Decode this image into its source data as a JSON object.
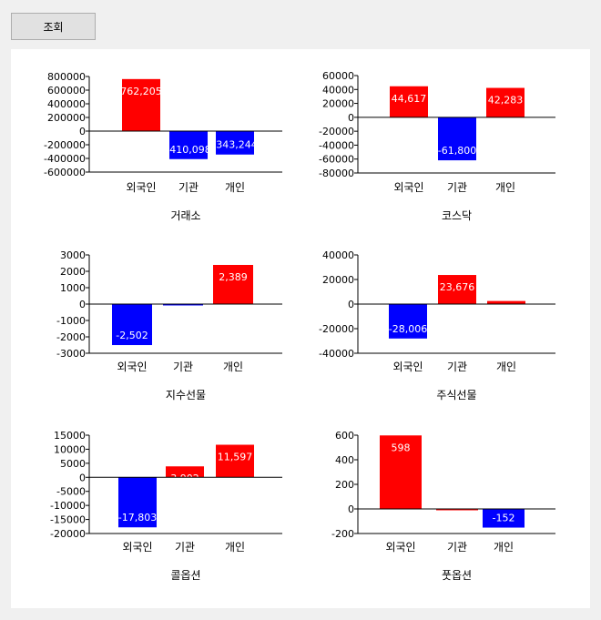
{
  "toolbar": {
    "query_label": "조회"
  },
  "chart_data": [
    {
      "type": "bar",
      "title": "거래소",
      "categories": [
        "외국인",
        "기관",
        "개인"
      ],
      "values": [
        762205,
        -410098,
        -343244
      ],
      "value_labels": [
        "762,205",
        "-410,098",
        "-343,244"
      ],
      "yticks": [
        800000,
        600000,
        400000,
        200000,
        0,
        -200000,
        -400000,
        -600000
      ],
      "ylim": [
        -600000,
        800000
      ],
      "colors": [
        "#ff0000",
        "#0000ff",
        "#0000ff"
      ]
    },
    {
      "type": "bar",
      "title": "코스닥",
      "categories": [
        "외국인",
        "기관",
        "개인"
      ],
      "values": [
        44617,
        -61800,
        42283
      ],
      "value_labels": [
        "44,617",
        "-61,800",
        "42,283"
      ],
      "yticks": [
        60000,
        40000,
        20000,
        0,
        -20000,
        -40000,
        -60000,
        -80000
      ],
      "ylim": [
        -80000,
        60000
      ],
      "colors": [
        "#ff0000",
        "#0000ff",
        "#ff0000"
      ]
    },
    {
      "type": "bar",
      "title": "지수선물",
      "categories": [
        "외국인",
        "기관",
        "개인"
      ],
      "values": [
        -2502,
        -60,
        2389
      ],
      "value_labels": [
        "-2,502",
        "",
        "2,389"
      ],
      "yticks": [
        3000,
        2000,
        1000,
        0,
        -1000,
        -2000,
        -3000
      ],
      "ylim": [
        -3000,
        3000
      ],
      "colors": [
        "#0000ff",
        "#0000ff",
        "#ff0000"
      ]
    },
    {
      "type": "bar",
      "title": "주식선물",
      "categories": [
        "외국인",
        "기관",
        "개인"
      ],
      "values": [
        -28006,
        23676,
        2500
      ],
      "value_labels": [
        "-28,006",
        "23,676",
        ""
      ],
      "yticks": [
        40000,
        20000,
        0,
        -20000,
        -40000
      ],
      "ylim": [
        -40000,
        40000
      ],
      "colors": [
        "#0000ff",
        "#ff0000",
        "#ff0000"
      ]
    },
    {
      "type": "bar",
      "title": "콜옵션",
      "categories": [
        "외국인",
        "기관",
        "개인"
      ],
      "values": [
        -17803,
        3902,
        11597
      ],
      "value_labels": [
        "-17,803",
        "3,902",
        "11,597"
      ],
      "yticks": [
        15000,
        10000,
        5000,
        0,
        -5000,
        -10000,
        -15000,
        -20000
      ],
      "ylim": [
        -20000,
        15000
      ],
      "colors": [
        "#0000ff",
        "#ff0000",
        "#ff0000"
      ]
    },
    {
      "type": "bar",
      "title": "풋옵션",
      "categories": [
        "외국인",
        "기관",
        "개인"
      ],
      "values": [
        598,
        0,
        -152
      ],
      "value_labels": [
        "598",
        "",
        "-152"
      ],
      "yticks": [
        600,
        400,
        200,
        0,
        -200
      ],
      "ylim": [
        -200,
        600
      ],
      "colors": [
        "#ff0000",
        "#ff0000",
        "#0000ff"
      ]
    }
  ]
}
